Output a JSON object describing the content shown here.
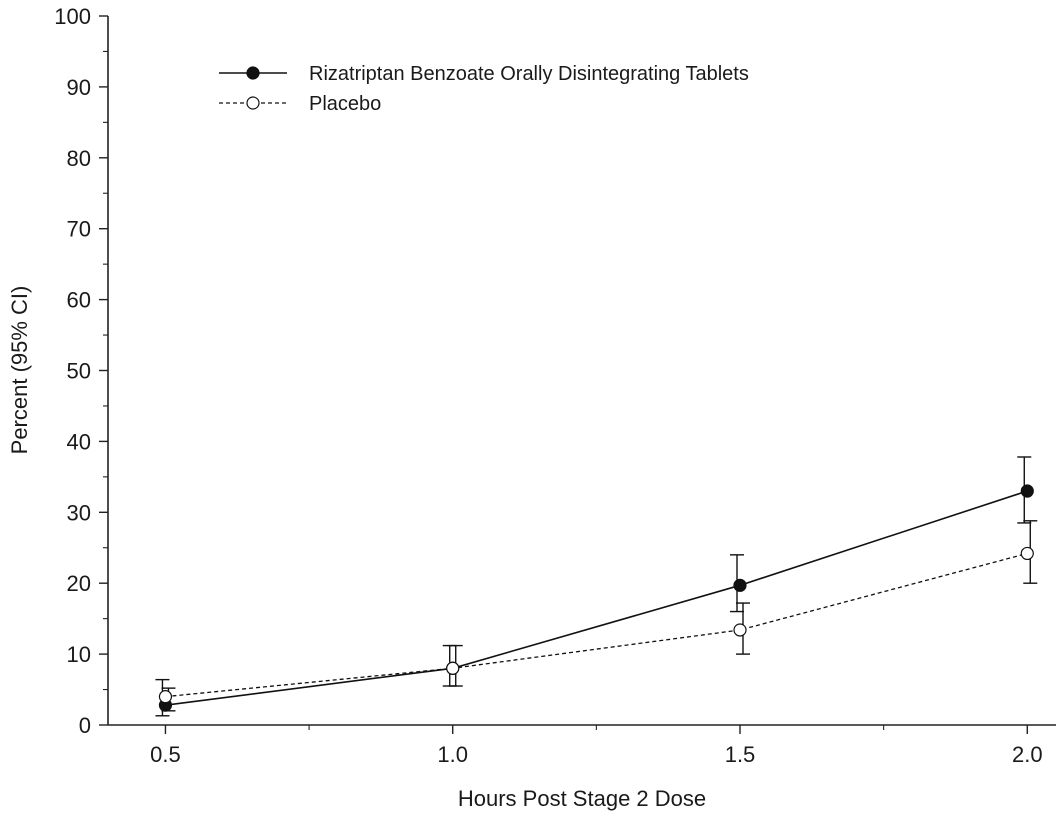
{
  "chart_data": {
    "type": "line",
    "xlabel": "Hours Post Stage 2 Dose",
    "ylabel": "Percent (95% CI)",
    "x": [
      0.5,
      1.0,
      1.5,
      2.0
    ],
    "x_tick_labels": [
      "0.5",
      "1.0",
      "1.5",
      "2.0"
    ],
    "xlim": [
      0.4,
      2.05
    ],
    "ylim": [
      0,
      100
    ],
    "y_ticks": [
      0,
      10,
      20,
      30,
      40,
      50,
      60,
      70,
      80,
      90,
      100
    ],
    "grid": false,
    "legend_position": "top-left",
    "series": [
      {
        "name": "Rizatriptan Benzoate Orally Disintegrating Tablets",
        "values": [
          2.8,
          8.0,
          19.7,
          33.0
        ],
        "ci_low": [
          1.3,
          5.5,
          16.0,
          28.5
        ],
        "ci_high": [
          6.4,
          11.2,
          24.0,
          37.8
        ],
        "marker": "filled-circle",
        "line_style": "solid",
        "color": "#111111"
      },
      {
        "name": "Placebo",
        "values": [
          4.0,
          8.0,
          13.4,
          24.2
        ],
        "ci_low": [
          2.0,
          5.5,
          10.0,
          20.0
        ],
        "ci_high": [
          5.2,
          11.2,
          17.2,
          28.8
        ],
        "marker": "open-circle",
        "line_style": "dashed",
        "color": "#111111"
      }
    ]
  }
}
